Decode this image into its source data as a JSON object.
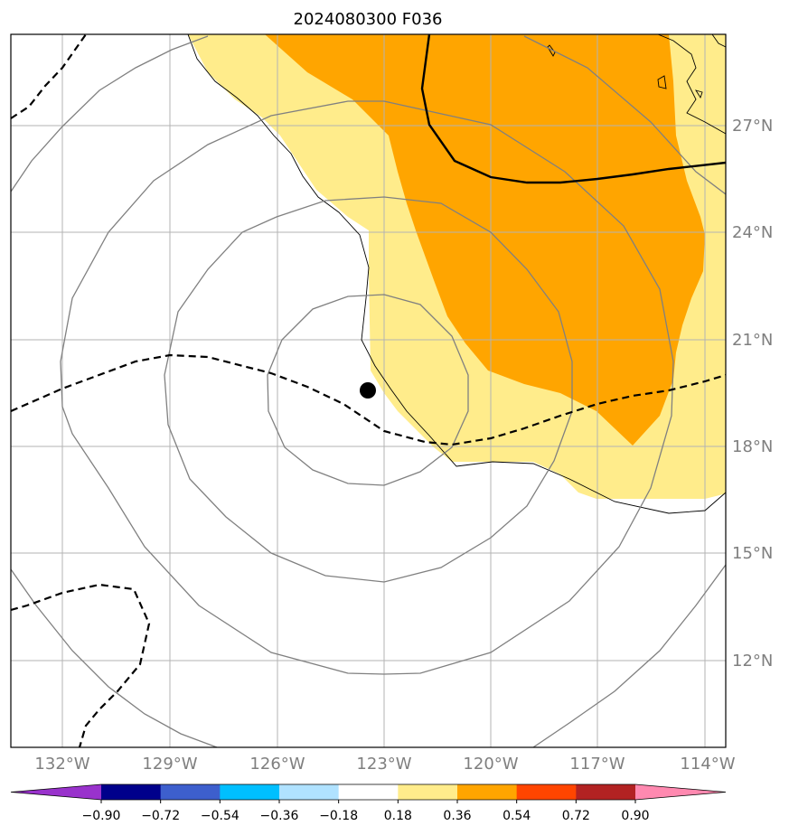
{
  "title": "2024080300 F036",
  "longitude_labels": [
    "132°W",
    "129°W",
    "126°W",
    "123°W",
    "120°W",
    "117°W",
    "114°W"
  ],
  "latitude_labels": [
    "27°N",
    "24°N",
    "21°N",
    "18°N",
    "15°N",
    "12°N"
  ],
  "colorbar": {
    "ticks": [
      "−0.90",
      "−0.72",
      "−0.54",
      "−0.36",
      "−0.18",
      "0.18",
      "0.36",
      "0.54",
      "0.72",
      "0.90"
    ],
    "colors": [
      "#9932cc",
      "#00008b",
      "#3d5fcd",
      "#00bfff",
      "#b0e2ff",
      "#ffffff",
      "#ffec8b",
      "#ffa500",
      "#ff4500",
      "#b22222",
      "#ff89b0"
    ]
  },
  "map": {
    "frame_color": "#000000",
    "grid_color": "#b3b3b3",
    "range_ring_color": "#808080",
    "fill_light_yellow": "#ffec8b",
    "fill_orange": "#ffa500",
    "marker": "storm-center-dot"
  }
}
